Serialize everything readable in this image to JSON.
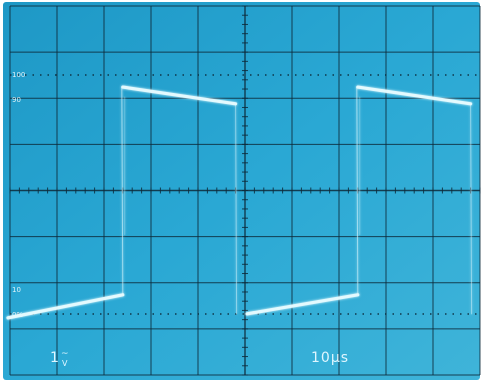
{
  "screen": {
    "background_color": "#2aa8d4",
    "bezel_color": "#ffffff",
    "grid_color": "#0d2a3a",
    "trace_color": "#e6fbff"
  },
  "graticule": {
    "divisions_x": 10,
    "divisions_y": 8,
    "level_labels": [
      "100",
      "90",
      "10",
      "0%"
    ]
  },
  "channel": {
    "volts_per_div": "1",
    "volts_unit_glyph": "V",
    "volts_coupling_glyph": "~"
  },
  "timebase": {
    "label": "10μs"
  },
  "waveform": {
    "type": "square-pulse",
    "periods_visible": 2,
    "high_start_level_pct": 95,
    "high_end_level_pct": 88,
    "low_start_level_pct": 0,
    "low_end_level_pct": 8
  }
}
